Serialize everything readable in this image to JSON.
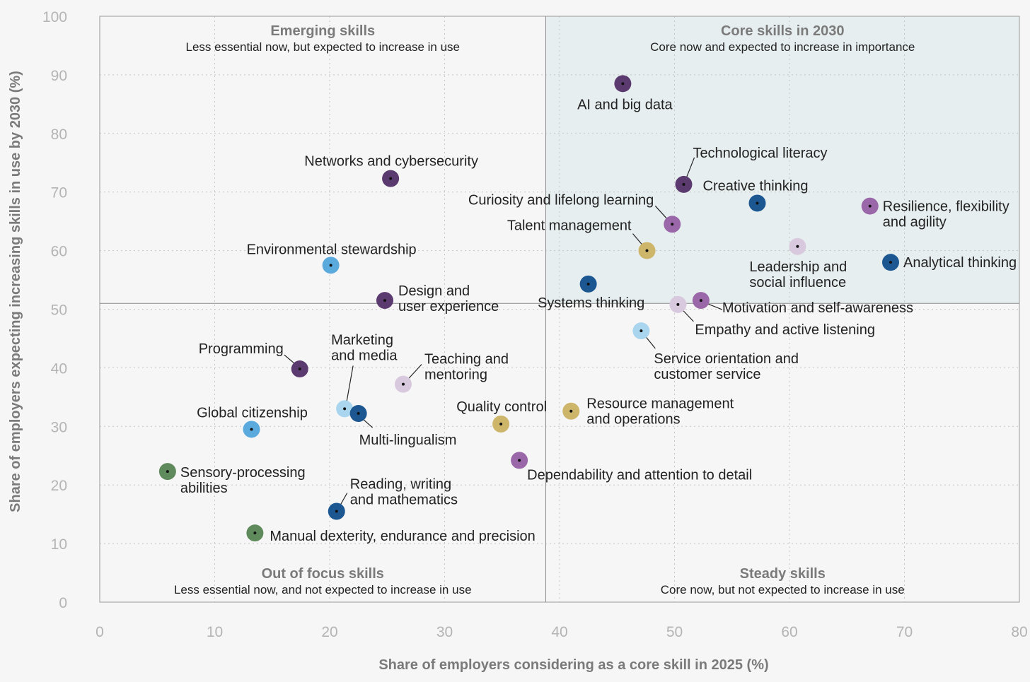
{
  "chart_data": {
    "type": "scatter",
    "xlabel": "Share of employers considering as a core skill in 2025 (%)",
    "ylabel": "Share of employers expecting increasing skills in use by 2030 (%)",
    "xlim": [
      0,
      80
    ],
    "ylim": [
      0,
      100
    ],
    "x_ticks": [
      "0",
      "10",
      "20",
      "30",
      "40",
      "50",
      "60",
      "70",
      "80"
    ],
    "y_ticks": [
      "0",
      "10",
      "20",
      "30",
      "40",
      "50",
      "60",
      "70",
      "80",
      "90",
      "100"
    ],
    "grid": true,
    "divider": {
      "x": 38.8,
      "y": 51.0
    },
    "highlight_color": "#e7eef0",
    "quadrants": [
      {
        "id": "emerging",
        "title": "Emerging skills",
        "subtitle": "Less essential now, but expected to increase in use",
        "position": "top-left"
      },
      {
        "id": "core",
        "title": "Core skills in 2030",
        "subtitle": "Core now and expected to increase in importance",
        "position": "top-right"
      },
      {
        "id": "out",
        "title": "Out of focus skills",
        "subtitle": "Less essential now, and not expected to increase in use",
        "position": "bottom-left"
      },
      {
        "id": "steady",
        "title": "Steady skills",
        "subtitle": "Core now, but not expected to increase in use",
        "position": "bottom-right"
      }
    ],
    "points": [
      {
        "label": [
          "AI and big data"
        ],
        "x": 45.5,
        "y": 88.5,
        "color": "#5b3a6f"
      },
      {
        "label": [
          "Networks and cybersecurity"
        ],
        "x": 25.3,
        "y": 72.3,
        "color": "#5b3a6f"
      },
      {
        "label": [
          "Technological literacy"
        ],
        "x": 50.8,
        "y": 71.3,
        "color": "#5b3a6f"
      },
      {
        "label": [
          "Creative thinking"
        ],
        "x": 57.2,
        "y": 68.1,
        "color": "#1c5791"
      },
      {
        "label": [
          "Resilience, flexibility",
          "and agility"
        ],
        "x": 67.0,
        "y": 67.6,
        "color": "#9a67a8"
      },
      {
        "label": [
          "Curiosity and lifelong learning"
        ],
        "x": 49.8,
        "y": 64.5,
        "color": "#9a67a8"
      },
      {
        "label": [
          "Leadership and",
          "social influence"
        ],
        "x": 60.7,
        "y": 60.7,
        "color": "#d9c9de"
      },
      {
        "label": [
          "Talent management"
        ],
        "x": 47.6,
        "y": 60.0,
        "color": "#cdb56a"
      },
      {
        "label": [
          "Analytical thinking"
        ],
        "x": 68.8,
        "y": 58.0,
        "color": "#1c5791"
      },
      {
        "label": [
          "Environmental stewardship"
        ],
        "x": 20.1,
        "y": 57.5,
        "color": "#5aaadd"
      },
      {
        "label": [
          "Systems thinking"
        ],
        "x": 42.5,
        "y": 54.3,
        "color": "#1c5791"
      },
      {
        "label": [
          "Design and",
          "user experience"
        ],
        "x": 24.8,
        "y": 51.5,
        "color": "#5b3a6f"
      },
      {
        "label": [
          "Motivation and self-awareness"
        ],
        "x": 52.3,
        "y": 51.5,
        "color": "#9a67a8"
      },
      {
        "label": [
          "Empathy and active listening"
        ],
        "x": 50.3,
        "y": 50.8,
        "color": "#d9c9de"
      },
      {
        "label": [
          "Service orientation and",
          "customer service"
        ],
        "x": 47.1,
        "y": 46.3,
        "color": "#a9d5ee"
      },
      {
        "label": [
          "Programming"
        ],
        "x": 17.4,
        "y": 39.8,
        "color": "#5b3a6f"
      },
      {
        "label": [
          "Teaching and",
          "mentoring"
        ],
        "x": 26.4,
        "y": 37.2,
        "color": "#d9c9de"
      },
      {
        "label": [
          "Marketing",
          "and media"
        ],
        "x": 21.3,
        "y": 33.0,
        "color": "#a9d5ee"
      },
      {
        "label": [
          "Resource management",
          "and operations"
        ],
        "x": 41.0,
        "y": 32.6,
        "color": "#cdb56a"
      },
      {
        "label": [
          "Multi-lingualism"
        ],
        "x": 22.5,
        "y": 32.2,
        "color": "#1c5791"
      },
      {
        "label": [
          "Quality control"
        ],
        "x": 34.9,
        "y": 30.4,
        "color": "#cdb56a"
      },
      {
        "label": [
          "Global citizenship"
        ],
        "x": 13.2,
        "y": 29.5,
        "color": "#5aaadd"
      },
      {
        "label": [
          "Dependability and attention to detail"
        ],
        "x": 36.5,
        "y": 24.2,
        "color": "#9a67a8"
      },
      {
        "label": [
          "Sensory-processing",
          "abilities"
        ],
        "x": 5.9,
        "y": 22.3,
        "color": "#5f8a5b"
      },
      {
        "label": [
          "Reading, writing",
          "and mathematics"
        ],
        "x": 20.6,
        "y": 15.5,
        "color": "#1c5791"
      },
      {
        "label": [
          "Manual dexterity, endurance and precision"
        ],
        "x": 13.5,
        "y": 11.8,
        "color": "#5f8a5b"
      }
    ]
  }
}
